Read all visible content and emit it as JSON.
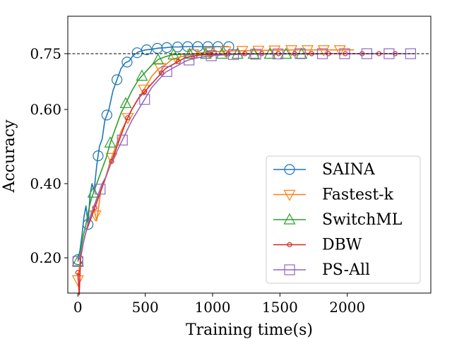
{
  "chart_data": {
    "type": "line",
    "title": "",
    "xlabel": "Training time(s)",
    "ylabel": "Accuracy",
    "xlim": [
      -75,
      2620
    ],
    "ylim": [
      0.095,
      0.88
    ],
    "x_ticks": [
      0,
      500,
      1000,
      1500,
      2000
    ],
    "x_tick_labels": [
      "0",
      "500",
      "1000",
      "1500",
      "2000"
    ],
    "y_ticks": [
      0.2,
      0.4,
      0.6,
      0.75
    ],
    "y_tick_labels": [
      "0.20",
      "0.40",
      "0.60",
      "0.75"
    ],
    "reference_line": {
      "y": 0.75,
      "style": "dashed",
      "color": "#000000"
    },
    "grid": false,
    "legend_position": "lower-right",
    "series": [
      {
        "name": "SAINA",
        "color": "#1f77b4",
        "marker": "circle",
        "x": [
          0,
          15,
          30,
          45,
          60,
          75,
          90,
          105,
          120,
          140,
          160,
          180,
          200,
          230,
          260,
          290,
          320,
          350,
          380,
          410,
          450,
          500,
          550,
          600,
          650,
          700,
          750,
          800,
          850,
          900,
          950,
          1000,
          1050,
          1100,
          1120
        ],
        "y": [
          0.195,
          0.22,
          0.26,
          0.31,
          0.34,
          0.29,
          0.37,
          0.4,
          0.38,
          0.45,
          0.5,
          0.52,
          0.57,
          0.6,
          0.65,
          0.68,
          0.71,
          0.725,
          0.73,
          0.745,
          0.755,
          0.76,
          0.762,
          0.765,
          0.766,
          0.768,
          0.768,
          0.769,
          0.769,
          0.769,
          0.769,
          0.769,
          0.769,
          0.769,
          0.769
        ],
        "marker_x": [
          0,
          75,
          150,
          215,
          290,
          365,
          440,
          510,
          590,
          660,
          740,
          815,
          890,
          965,
          1040,
          1120
        ]
      },
      {
        "name": "Fastest-k",
        "color": "#ff7f0e",
        "marker": "triangle-down",
        "x": [
          0,
          20,
          40,
          60,
          80,
          100,
          120,
          140,
          170,
          200,
          240,
          280,
          320,
          360,
          400,
          450,
          500,
          550,
          600,
          650,
          700,
          800,
          900,
          1000,
          1100,
          1200,
          1400,
          1600,
          1800,
          2000,
          2050
        ],
        "y": [
          0.14,
          0.2,
          0.24,
          0.27,
          0.3,
          0.31,
          0.33,
          0.3,
          0.38,
          0.41,
          0.46,
          0.5,
          0.54,
          0.57,
          0.6,
          0.63,
          0.66,
          0.69,
          0.71,
          0.72,
          0.735,
          0.745,
          0.752,
          0.755,
          0.757,
          0.758,
          0.759,
          0.76,
          0.76,
          0.76,
          0.76
        ],
        "marker_x": [
          0,
          130,
          250,
          370,
          490,
          610,
          730,
          855,
          975,
          1095,
          1220,
          1340,
          1460,
          1585,
          1705,
          1825,
          1945
        ]
      },
      {
        "name": "SwitchML",
        "color": "#2ca02c",
        "marker": "triangle-up",
        "x": [
          0,
          20,
          40,
          60,
          80,
          100,
          120,
          150,
          180,
          210,
          240,
          280,
          320,
          360,
          400,
          450,
          500,
          550,
          600,
          650,
          700,
          750,
          800,
          850,
          900,
          1000,
          1100,
          1300,
          1500,
          1700,
          1800
        ],
        "y": [
          0.19,
          0.22,
          0.26,
          0.29,
          0.33,
          0.36,
          0.38,
          0.41,
          0.44,
          0.47,
          0.51,
          0.55,
          0.59,
          0.62,
          0.65,
          0.68,
          0.7,
          0.72,
          0.735,
          0.742,
          0.747,
          0.748,
          0.749,
          0.749,
          0.749,
          0.749,
          0.749,
          0.749,
          0.749,
          0.749,
          0.749
        ],
        "marker_x": [
          0,
          115,
          240,
          355,
          475,
          595,
          710,
          830,
          950,
          1070,
          1185,
          1305,
          1425,
          1545,
          1660
        ]
      },
      {
        "name": "DBW",
        "color": "#d62728",
        "marker": "circle-small",
        "x": [
          0,
          10,
          20,
          40,
          60,
          80,
          100,
          120,
          140,
          170,
          200,
          240,
          280,
          320,
          360,
          400,
          450,
          500,
          550,
          600,
          650,
          700,
          750,
          800,
          900,
          1000,
          1100,
          1200,
          1400,
          1600,
          1800,
          2000,
          2200,
          2400
        ],
        "y": [
          0.16,
          0.1,
          0.2,
          0.24,
          0.27,
          0.29,
          0.31,
          0.33,
          0.35,
          0.38,
          0.41,
          0.45,
          0.49,
          0.53,
          0.57,
          0.6,
          0.63,
          0.65,
          0.67,
          0.69,
          0.71,
          0.72,
          0.73,
          0.74,
          0.746,
          0.748,
          0.749,
          0.75,
          0.75,
          0.75,
          0.75,
          0.75,
          0.75,
          0.75
        ],
        "marker_x": [
          0,
          125,
          250,
          370,
          495,
          620,
          745,
          870,
          990,
          1115,
          1240,
          1365,
          1490,
          1610,
          1735,
          1860,
          1985,
          2110,
          2235,
          2355
        ]
      },
      {
        "name": "PS-All",
        "color": "#9467bd",
        "marker": "square",
        "x": [
          0,
          20,
          40,
          60,
          80,
          100,
          120,
          150,
          180,
          210,
          240,
          280,
          320,
          360,
          400,
          450,
          500,
          550,
          600,
          650,
          700,
          750,
          800,
          850,
          900,
          1000,
          1100,
          1200,
          1400,
          1600,
          1800,
          2000,
          2200,
          2400,
          2500
        ],
        "y": [
          0.19,
          0.21,
          0.24,
          0.27,
          0.3,
          0.32,
          0.34,
          0.37,
          0.4,
          0.42,
          0.45,
          0.48,
          0.51,
          0.54,
          0.57,
          0.6,
          0.63,
          0.66,
          0.68,
          0.7,
          0.71,
          0.72,
          0.73,
          0.736,
          0.74,
          0.745,
          0.747,
          0.748,
          0.749,
          0.75,
          0.75,
          0.75,
          0.75,
          0.75,
          0.75
        ],
        "marker_x": [
          0,
          165,
          330,
          495,
          660,
          825,
          990,
          1155,
          1320,
          1485,
          1650,
          1815,
          1980,
          2145,
          2310,
          2470
        ]
      }
    ]
  }
}
